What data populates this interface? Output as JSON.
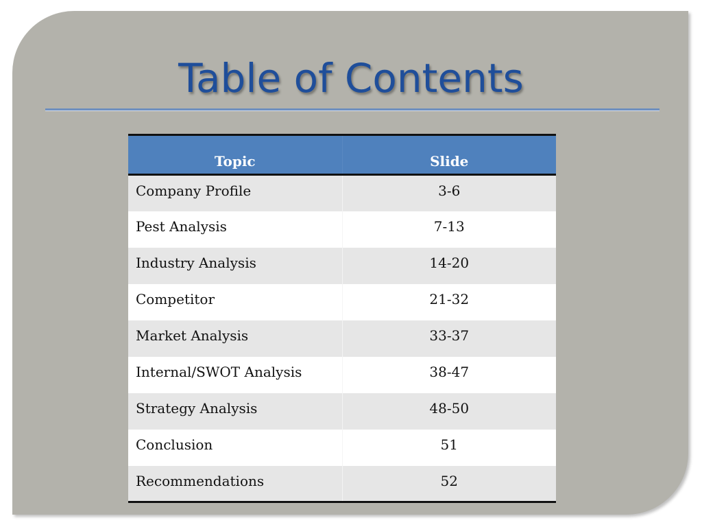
{
  "title": "Table of Contents",
  "table": {
    "headers": {
      "topic": "Topic",
      "slide": "Slide"
    },
    "rows": [
      {
        "topic": "Company Profile",
        "slide": "3-6"
      },
      {
        "topic": "Pest Analysis",
        "slide": "7-13"
      },
      {
        "topic": "Industry Analysis",
        "slide": "14-20"
      },
      {
        "topic": "Competitor",
        "slide": "21-32"
      },
      {
        "topic": "Market Analysis",
        "slide": "33-37"
      },
      {
        "topic": "Internal/SWOT Analysis",
        "slide": "38-47"
      },
      {
        "topic": "Strategy Analysis",
        "slide": "48-50"
      },
      {
        "topic": "Conclusion",
        "slide": "51"
      },
      {
        "topic": "Recommendations",
        "slide": "52"
      }
    ]
  },
  "colors": {
    "background": "#b3b2ab",
    "title": "#1f4e9a",
    "header": "#4f81bd",
    "row_shaded": "#e6e6e6"
  }
}
